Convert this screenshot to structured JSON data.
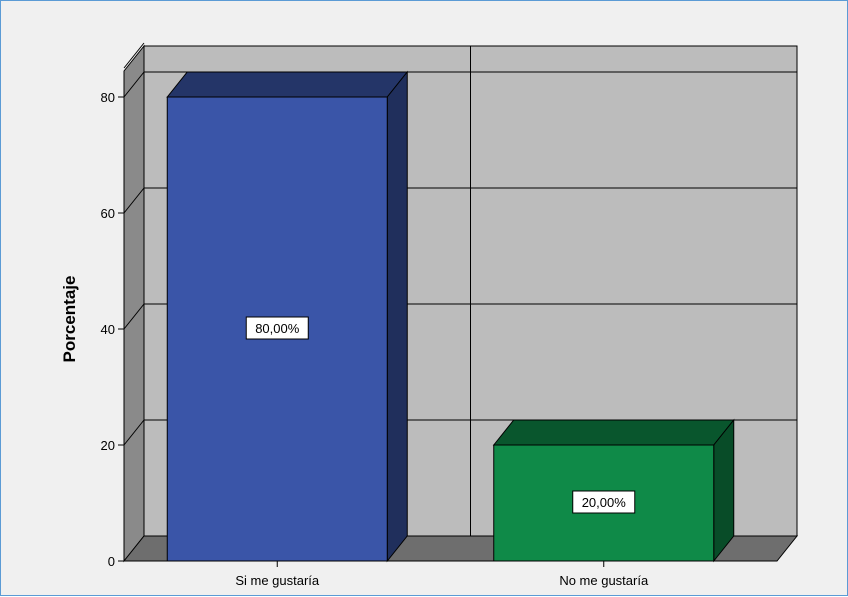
{
  "chart_data": {
    "type": "bar",
    "title": "",
    "xlabel": "",
    "ylabel": "Porcentaje",
    "categories": [
      "Si me gustaría",
      "No me gustaría"
    ],
    "values": [
      80,
      20
    ],
    "data_labels": [
      "80,00%",
      "20,00%"
    ],
    "ylim": [
      0,
      85
    ],
    "yticks": [
      "0",
      "20",
      "40",
      "60",
      "80"
    ],
    "grid": true,
    "three_d": true,
    "colors": {
      "bars": [
        "#3a55a8",
        "#0f8a48"
      ],
      "plot_background": "#bcbcbc",
      "floor": "#6e6e6e",
      "side_wall": "#8a8a8a",
      "frame_border": "#5b9bd5"
    }
  }
}
